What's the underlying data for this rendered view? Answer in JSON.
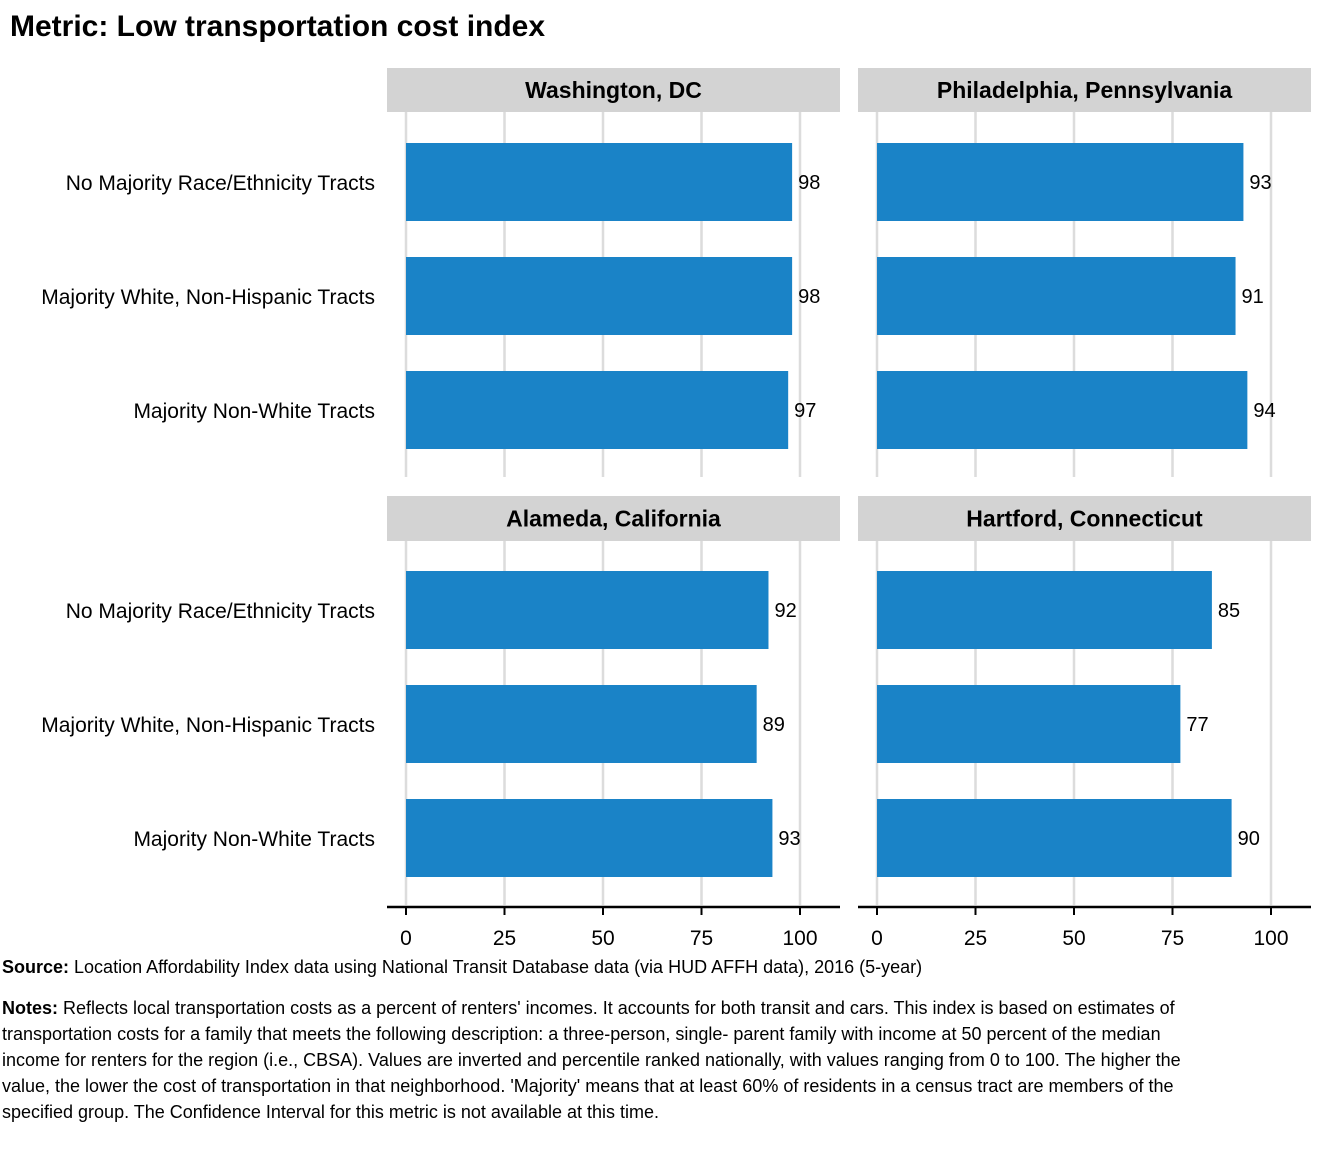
{
  "title": "Metric: Low transportation cost index",
  "source": {
    "label": "Source:",
    "text": " Location Affordability Index data using National Transit Database data (via HUD AFFH data), 2016 (5-year)"
  },
  "notes": {
    "label": "Notes:",
    "text": " Reflects local transportation costs as a percent of renters' incomes. It accounts for both transit and cars. This index is based on estimates of transportation costs for a family that meets the following description: a three-person, single- parent family with income at 50 percent of the median income for renters for the region (i.e., CBSA). Values are inverted and percentile ranked nationally, with values ranging from 0 to 100. The higher the value, the lower the cost of transportation in that neighborhood. 'Majority' means that at least 60% of residents in a census tract are members of the specified group. The Confidence Interval for this metric is not available at this time."
  },
  "colors": {
    "bar": "#1a83c7",
    "strip": "#d3d3d3",
    "grid": "#dcdcdc"
  },
  "chart_data": {
    "type": "bar",
    "orientation": "horizontal",
    "categories": [
      "No Majority Race/Ethnicity Tracts",
      "Majority White, Non-Hispanic Tracts",
      "Majority Non-White Tracts"
    ],
    "xlim": [
      0,
      100
    ],
    "xticks": [
      0,
      25,
      50,
      75,
      100
    ],
    "grid": true,
    "panels": [
      {
        "name": "Washington, DC",
        "values": [
          98,
          98,
          97
        ]
      },
      {
        "name": "Philadelphia, Pennsylvania",
        "values": [
          93,
          91,
          94
        ]
      },
      {
        "name": "Alameda, California",
        "values": [
          92,
          89,
          93
        ]
      },
      {
        "name": "Hartford, Connecticut",
        "values": [
          85,
          77,
          90
        ]
      }
    ]
  }
}
